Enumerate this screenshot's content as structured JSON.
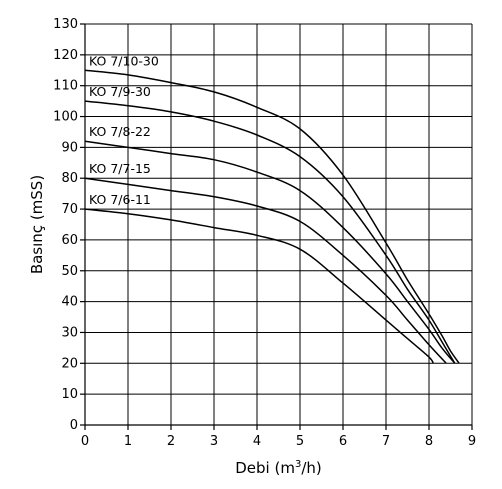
{
  "chart_data": {
    "type": "line",
    "xlabel_main": "Debi (m",
    "xlabel_sup": "3",
    "xlabel_end": "/h)",
    "ylabel": "Basınç (mSS)",
    "xlim": [
      0,
      9
    ],
    "ylim": [
      0,
      130
    ],
    "xticks": [
      0,
      1,
      2,
      3,
      4,
      5,
      6,
      7,
      8,
      9
    ],
    "yticks": [
      0,
      10,
      20,
      30,
      40,
      50,
      60,
      70,
      80,
      90,
      100,
      110,
      120,
      130
    ],
    "grid": true,
    "series": [
      {
        "name": "KO 7/10-30",
        "x": [
          0,
          1,
          2,
          3,
          4,
          5,
          6,
          7,
          7.5,
          8,
          8.3,
          8.5,
          8.7
        ],
        "y": [
          115,
          113.5,
          111,
          108,
          103,
          96,
          81,
          59,
          47,
          36,
          29,
          24,
          20
        ]
      },
      {
        "name": "KO 7/9-30",
        "x": [
          0,
          1,
          2,
          3,
          4,
          5,
          6,
          7,
          7.5,
          8,
          8.3,
          8.6
        ],
        "y": [
          105,
          103.5,
          101.5,
          98.5,
          94,
          87,
          74,
          55,
          44,
          34,
          27,
          20
        ]
      },
      {
        "name": "KO 7/8-22",
        "x": [
          0,
          1,
          2,
          3,
          4,
          5,
          6,
          7,
          7.5,
          8,
          8.3,
          8.6
        ],
        "y": [
          92,
          90,
          88,
          86,
          82,
          76,
          64,
          49,
          40,
          31,
          25,
          20
        ]
      },
      {
        "name": "KO 7/7-15",
        "x": [
          0,
          1,
          2,
          3,
          4,
          5,
          6,
          7,
          7.5,
          8,
          8.4
        ],
        "y": [
          80,
          78,
          76,
          74,
          71,
          66,
          55,
          42,
          34,
          26,
          20
        ]
      },
      {
        "name": "KO 7/6-11",
        "x": [
          0,
          1,
          2,
          3,
          4,
          5,
          6,
          7,
          7.5,
          8,
          8.1
        ],
        "y": [
          70,
          68.5,
          66.5,
          64,
          61.5,
          57,
          46,
          34,
          28,
          22,
          20
        ]
      }
    ]
  }
}
